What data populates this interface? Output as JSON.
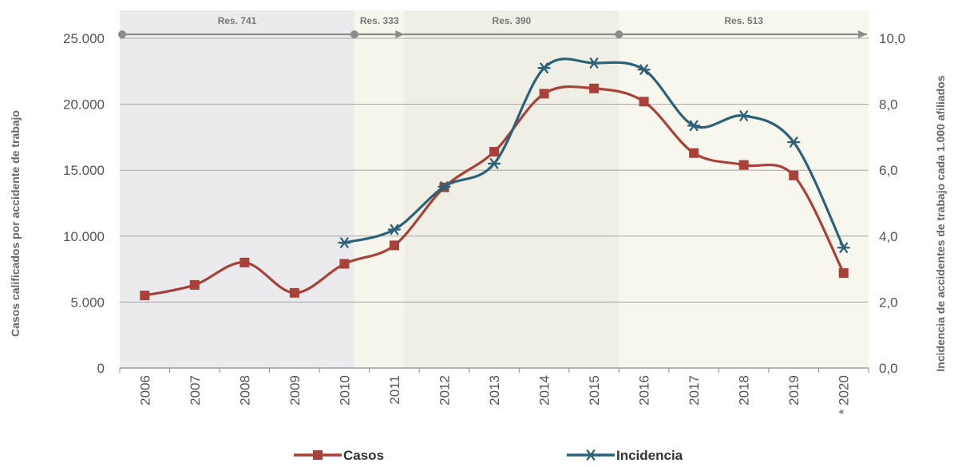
{
  "chart_data": {
    "type": "line",
    "categories": [
      "2006",
      "2007",
      "2008",
      "2009",
      "2010",
      "2011",
      "2012",
      "2013",
      "2014",
      "2015",
      "2016",
      "2017",
      "2018",
      "2019",
      "* 2020"
    ],
    "series": [
      {
        "name": "Casos",
        "axis": "left",
        "color": "#a8413a",
        "marker": "square",
        "values": [
          5500,
          6300,
          8000,
          5700,
          7900,
          9300,
          13700,
          16400,
          20800,
          21200,
          20200,
          16300,
          15400,
          14600,
          7200
        ]
      },
      {
        "name": "Incidencia",
        "axis": "right",
        "color": "#2c6278",
        "marker": "asterisk",
        "values": [
          null,
          null,
          null,
          null,
          3.8,
          4.2,
          5.5,
          6.2,
          9.1,
          9.25,
          9.05,
          7.35,
          7.65,
          6.85,
          3.65
        ]
      }
    ],
    "ylabel": "Casos calificados por accidente de trabajo",
    "y2label": "Incidencia de accidentes de trabajo cada 1.000 afiliados",
    "ylim": [
      0,
      25000
    ],
    "y2lim": [
      0,
      10
    ],
    "yticks": [
      "0",
      "5.000",
      "10.000",
      "15.000",
      "20.000",
      "25.000"
    ],
    "y2ticks": [
      "0,0",
      "2,0",
      "4,0",
      "6,0",
      "8,0",
      "10,0"
    ],
    "grid": true,
    "legend_position": "bottom",
    "periods": [
      {
        "label": "Res. 741",
        "from": -0.5,
        "to": 4.2,
        "fill": "#ebebee",
        "marker_from": -0.5,
        "marker_to": 4.2,
        "arrow": false
      },
      {
        "label": "Res. 333",
        "from": 4.2,
        "to": 5.2,
        "fill": "#f6f6ec",
        "marker_from": 4.2,
        "marker_to": 5.2,
        "arrow": true
      },
      {
        "label": "Res. 390",
        "from": 5.2,
        "to": 9.5,
        "fill": "#efefe5",
        "marker_from": 5.2,
        "marker_to": 9.5,
        "arrow": false
      },
      {
        "label": "Res. 513",
        "from": 9.5,
        "to": 14.5,
        "fill": "#f8f7ed",
        "marker_from": 9.5,
        "marker_to": 14.5,
        "arrow": true
      }
    ]
  }
}
